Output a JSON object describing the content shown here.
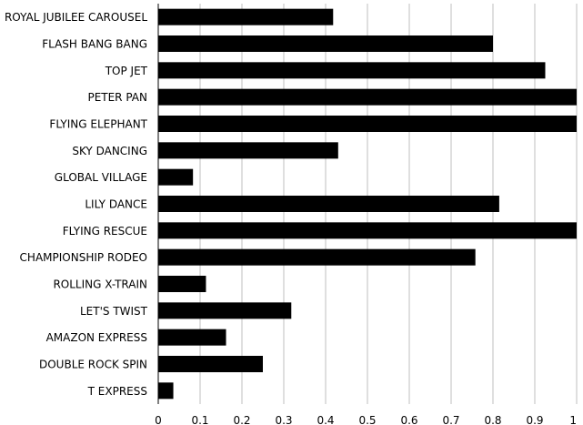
{
  "chart_data": {
    "type": "bar",
    "orientation": "horizontal",
    "title": "",
    "xlabel": "",
    "ylabel": "",
    "categories": [
      "ROYAL JUBILEE CAROUSEL",
      "FLASH BANG BANG",
      "TOP JET",
      "PETER PAN",
      "FLYING ELEPHANT",
      "SKY DANCING",
      "GLOBAL VILLAGE",
      "LILY DANCE",
      "FLYING RESCUE",
      "CHAMPIONSHIP RODEO",
      "ROLLING X-TRAIN",
      "LET'S TWIST",
      "AMAZON EXPRESS",
      "DOUBLE ROCK SPIN",
      "T EXPRESS"
    ],
    "values": [
      0.418,
      0.8,
      0.925,
      1.0,
      1.0,
      0.43,
      0.083,
      0.815,
      1.0,
      0.758,
      0.114,
      0.318,
      0.162,
      0.25,
      0.036
    ],
    "xlim": [
      0,
      1
    ],
    "xticks": [
      "0",
      "0.1",
      "0.2",
      "0.3",
      "0.4",
      "0.5",
      "0.6",
      "0.7",
      "0.8",
      "0.9",
      "1"
    ],
    "grid": true,
    "legend": "none",
    "bar_color": "#000000",
    "grid_color": "#bfbfbf"
  }
}
